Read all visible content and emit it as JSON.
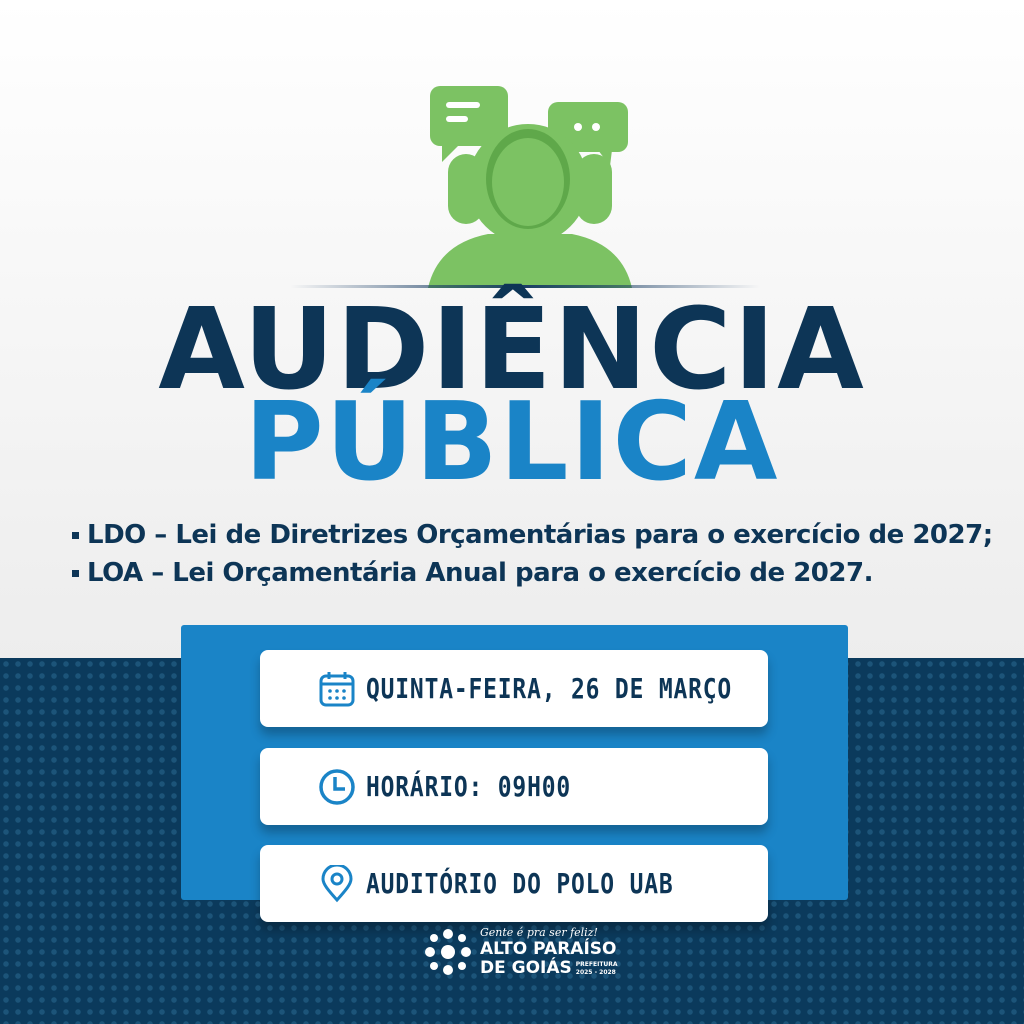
{
  "title": {
    "line1": "AUDIÊNCIA",
    "line2": "PÚBLICA"
  },
  "bullets": [
    "LDO – Lei de Diretrizes Orçamentárias para o exercício de 2027;",
    "LOA – Lei Orçamentária Anual para o exercício de 2027."
  ],
  "details": [
    {
      "icon": "calendar-icon",
      "text": "QUINTA-FEIRA, 26 DE MARÇO"
    },
    {
      "icon": "clock-icon",
      "text": "HORÁRIO: 09H00"
    },
    {
      "icon": "location-pin-icon",
      "text": "AUDITÓRIO DO POLO UAB"
    }
  ],
  "logo": {
    "slogan": "Gente é pra ser feliz!",
    "line1": "ALTO PARAÍSO",
    "line2": "DE GOIÁS",
    "prefeitura": "PREFEITURA",
    "years": "2025 - 2028"
  },
  "colors": {
    "navy": "#0d3556",
    "blue": "#1a84c7",
    "green": "#7cc263",
    "background_dark": "#0b3a5c"
  }
}
